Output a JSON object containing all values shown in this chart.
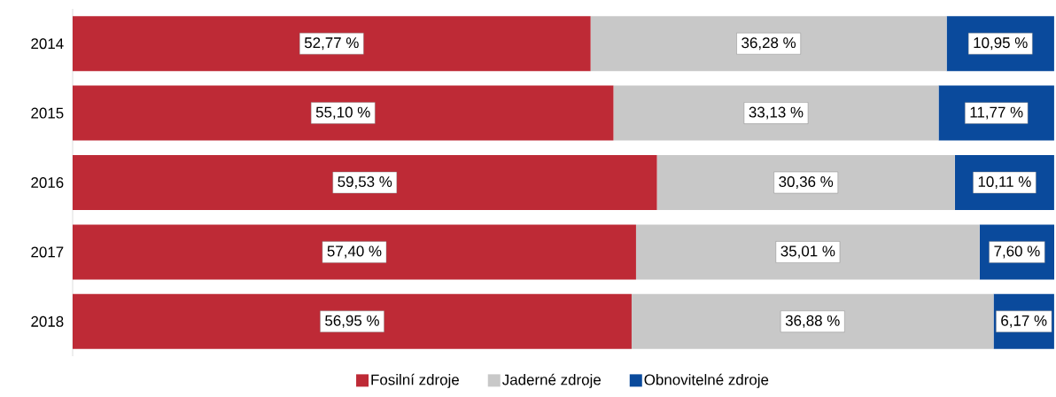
{
  "chart_data": {
    "type": "bar",
    "orientation": "horizontal",
    "stacked": true,
    "categories": [
      "2014",
      "2015",
      "2016",
      "2017",
      "2018"
    ],
    "tick_labels": "y",
    "legend": "bottom",
    "series": [
      {
        "name": "Fosilní zdroje",
        "color": "#be2a36",
        "values": [
          52.77,
          55.1,
          59.53,
          57.4,
          56.95
        ],
        "value_labels": [
          "52,77 %",
          "55,10 %",
          "59,53 %",
          "57,40 %",
          "56,95 %"
        ]
      },
      {
        "name": "Jaderné zdroje",
        "color": "#c8c8c8",
        "values": [
          36.28,
          33.13,
          30.36,
          35.01,
          36.88
        ],
        "value_labels": [
          "36,28 %",
          "33,13 %",
          "30,36 %",
          "35,01 %",
          "36,88 %"
        ]
      },
      {
        "name": "Obnovitelné zdroje",
        "color": "#0a4a9c",
        "values": [
          10.95,
          11.77,
          10.11,
          7.6,
          6.17
        ],
        "value_labels": [
          "10,95 %",
          "11,77 %",
          "10,11 %",
          "7,60 %",
          "6,17 %"
        ]
      }
    ]
  }
}
